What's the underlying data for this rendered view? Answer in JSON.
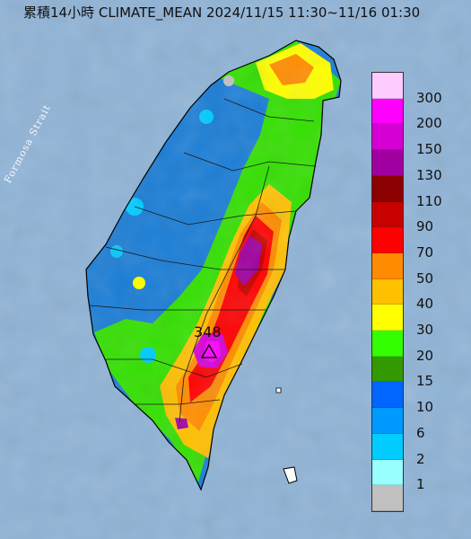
{
  "title": "累積14小時 CLIMATE_MEAN 2024/11/15 11:30~11/16 01:30",
  "strait_label": "Formosa Strait",
  "peak": {
    "value": "348",
    "marker": "triangle-icon"
  },
  "legend": {
    "labels": [
      "300",
      "200",
      "150",
      "130",
      "110",
      "90",
      "70",
      "50",
      "40",
      "30",
      "20",
      "15",
      "10",
      "6",
      "2",
      "1"
    ],
    "colors": [
      "#ffccff",
      "#ff00ff",
      "#d400d4",
      "#a000a0",
      "#8b0000",
      "#c80000",
      "#ff0000",
      "#ff8c00",
      "#ffc000",
      "#ffff00",
      "#33ff00",
      "#339900",
      "#0066ff",
      "#0099ff",
      "#00ccff",
      "#99ffff",
      "#c0c0c0"
    ]
  },
  "colors": {
    "sea": "#8fb3d6",
    "land_low": "#1a7dd6",
    "land_mid": "#33e000",
    "land_high": "#ffc000",
    "land_peak": "#d400d4"
  }
}
